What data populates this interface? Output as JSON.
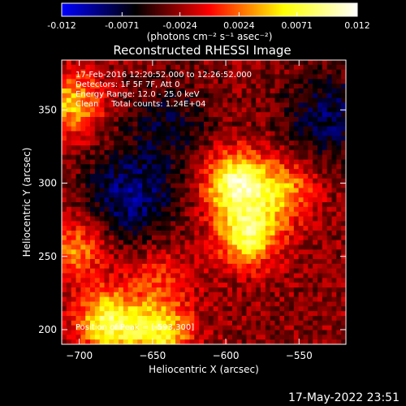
{
  "figure": {
    "title": "Reconstructed RHESSI Image",
    "timestamp": "17-May-2022 23:51"
  },
  "colorbar": {
    "ticks": [
      "-0.012",
      "-0.0071",
      "-0.0024",
      "0.0024",
      "0.0071",
      "0.012"
    ],
    "tick_values": [
      -0.012,
      -0.0071,
      -0.0024,
      0.0024,
      0.0071,
      0.012
    ],
    "range": [
      -0.012,
      0.012
    ],
    "units_text": "(photons cm⁻² s⁻¹ asec⁻²)",
    "colormap": [
      "#0000ff",
      "#000000",
      "#ff0000",
      "#ffff00",
      "#ffffff"
    ]
  },
  "annotations": {
    "line1": "17-Feb-2016 12:20:52.000 to 12:26:52.000",
    "line2": "Detectors: 1F 5F 7F, Att 0",
    "line3": "Energy Range: 12.0 - 25.0 keV",
    "line4": "Clean     Total counts: 1.24E+04",
    "peak": "Position of Peak = [-593,300]"
  },
  "chart_data": {
    "type": "heatmap",
    "title": "Reconstructed RHESSI Image",
    "xlabel": "Heliocentric X (arcsec)",
    "ylabel": "Heliocentric Y (arcsec)",
    "xlim": [
      -712,
      -518
    ],
    "ylim": [
      190,
      384
    ],
    "xticks": [
      -700,
      -650,
      -600,
      -550
    ],
    "yticks": [
      200,
      250,
      300,
      350
    ],
    "value_range": [
      -0.012,
      0.012
    ],
    "sources": [
      {
        "x": -593,
        "y": 300,
        "peak": 0.012
      },
      {
        "x": -585,
        "y": 265,
        "peak": 0.0105
      },
      {
        "x": -560,
        "y": 295,
        "peak": 0.0065
      },
      {
        "x": -705,
        "y": 355,
        "peak": 0.0075
      },
      {
        "x": -680,
        "y": 205,
        "peak": 0.0105
      },
      {
        "x": -645,
        "y": 198,
        "peak": 0.009
      },
      {
        "x": -703,
        "y": 255,
        "peak": 0.006
      },
      {
        "x": -645,
        "y": 235,
        "peak": 0.0035
      }
    ],
    "negative_regions": [
      {
        "x": -665,
        "y": 290,
        "depth": -0.006
      },
      {
        "x": -530,
        "y": 345,
        "depth": -0.005
      },
      {
        "x": -640,
        "y": 340,
        "depth": -0.0035
      }
    ],
    "peak_position": [
      -593,
      300
    ]
  }
}
